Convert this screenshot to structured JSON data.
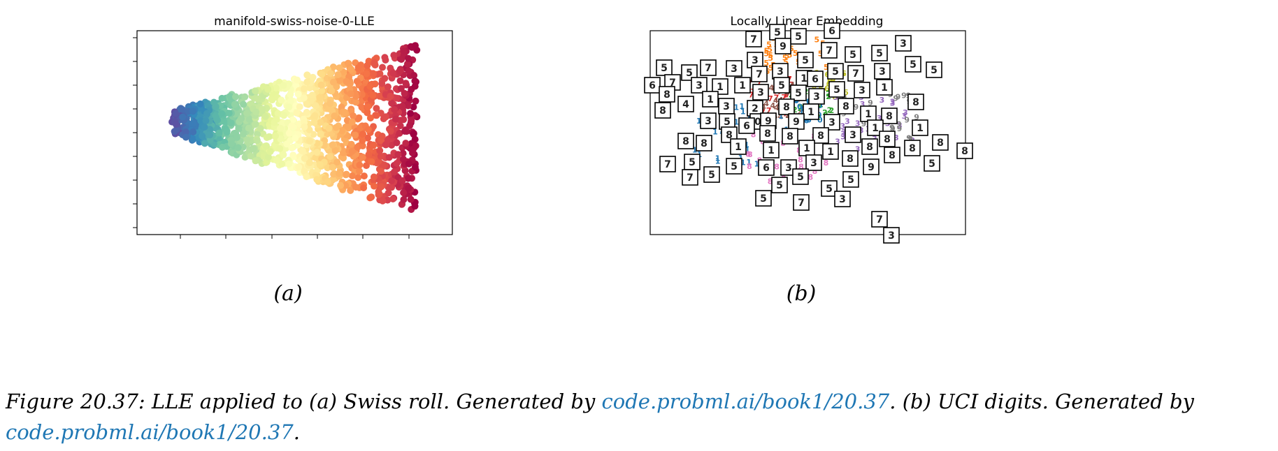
{
  "figure": {
    "number": "Figure 20.37:",
    "panel_a": {
      "title": "manifold-swiss-noise-0-LLE",
      "label": "(a)",
      "chart_data": {
        "type": "scatter",
        "title": "manifold-swiss-noise-0-LLE",
        "xlabel": "",
        "ylabel": "",
        "colormap": "Spectral",
        "x_tick_labels": [],
        "y_tick_labels": [],
        "description_shape": "fan / wedge, narrow on left widening to right"
      }
    },
    "panel_b": {
      "title": "Locally Linear Embedding",
      "label": "(b)",
      "chart_data": {
        "type": "scatter",
        "title": "Locally Linear Embedding",
        "xlabel": "",
        "ylabel": "",
        "point_labels": [
          "0",
          "1",
          "2",
          "3",
          "4",
          "5",
          "6",
          "7",
          "8",
          "9"
        ],
        "digit_colors": {
          "0": "#1f77b4",
          "1": "#1f77b4",
          "2": "#2ca02c",
          "3": "#9467bd",
          "4": "#8c564b",
          "5": "#ff7f0e",
          "6": "#bcbd22",
          "7": "#d62728",
          "8": "#e377c2",
          "9": "#7f7f7f"
        },
        "thumbnail_digits": [
          "7",
          "5",
          "5",
          "6",
          "3",
          "3",
          "9",
          "5",
          "7",
          "5",
          "5",
          "5",
          "5",
          "5",
          "5",
          "7",
          "3",
          "7",
          "3",
          "1",
          "5",
          "7",
          "3",
          "6",
          "7",
          "3",
          "1",
          "1",
          "3",
          "5",
          "6",
          "5",
          "3",
          "1",
          "8",
          "1",
          "8",
          "4",
          "3",
          "2",
          "5",
          "3",
          "8",
          "8",
          "8",
          "1",
          "0",
          "3",
          "5",
          "6",
          "9",
          "9",
          "3",
          "1",
          "8",
          "8",
          "8",
          "8",
          "8",
          "3",
          "1",
          "1",
          "8",
          "8",
          "1",
          "1",
          "1",
          "1",
          "8",
          "8",
          "8",
          "8",
          "8",
          "8",
          "8"
        ]
      }
    },
    "caption": {
      "part1": "LLE applied to (a) Swiss roll.  Generated by ",
      "link1": "code.probml.ai/book1/20.37",
      "part2": ".  (b) UCI digits. Generated by ",
      "link2": "code.probml.ai/book1/20.37",
      "part3": "."
    }
  }
}
